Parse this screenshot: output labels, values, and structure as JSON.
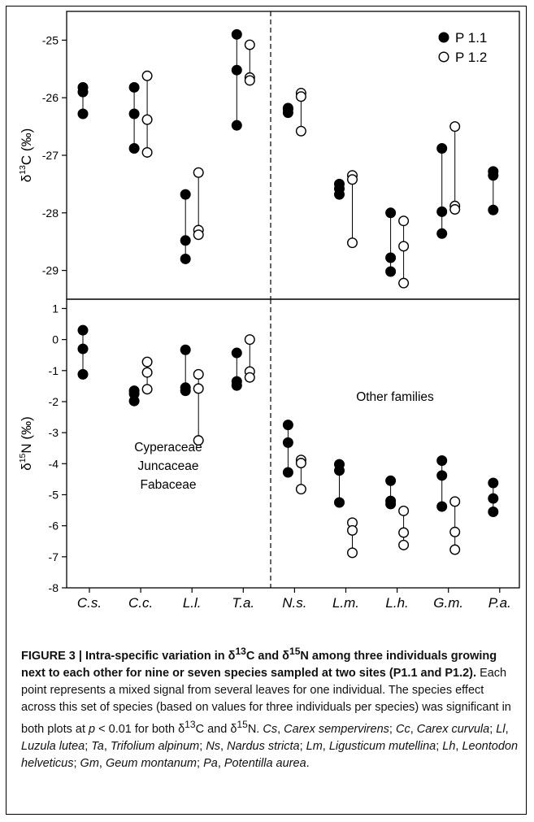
{
  "chart_data": [
    {
      "panel": "top",
      "type": "scatter",
      "ylabel": "δ13C (‰)",
      "ylim": [
        -29.5,
        -24.5
      ],
      "yticks": [
        -25,
        -26,
        -27,
        -28,
        -29
      ],
      "categories": [
        "C.s.",
        "C.c.",
        "L.l.",
        "T.a.",
        "N.s.",
        "L.m.",
        "L.h.",
        "G.m.",
        "P.a."
      ],
      "legend": {
        "placement": "top-right",
        "entries": [
          {
            "marker": "filled",
            "label": "P 1.1"
          },
          {
            "marker": "open",
            "label": "P 1.2"
          }
        ]
      },
      "series": [
        {
          "name": "P 1.1",
          "marker": "filled",
          "values": [
            [
              -25.82,
              -25.9,
              -26.28
            ],
            [
              -25.82,
              -26.28,
              -26.88
            ],
            [
              -27.68,
              -28.48,
              -28.8
            ],
            [
              -24.9,
              -25.52,
              -26.48
            ],
            [
              -26.18,
              -26.26,
              -26.2
            ],
            [
              -27.5,
              -27.58,
              -27.68
            ],
            [
              -28.0,
              -28.78,
              -29.02
            ],
            [
              -26.88,
              -27.98,
              -28.36
            ],
            [
              -27.28,
              -27.35,
              -27.95
            ]
          ]
        },
        {
          "name": "P 1.2",
          "marker": "open",
          "values": [
            null,
            [
              -25.62,
              -26.38,
              -26.95
            ],
            [
              -27.3,
              -28.3,
              -28.38
            ],
            [
              -25.08,
              -25.65,
              -25.7
            ],
            [
              -25.92,
              -25.98,
              -26.58
            ],
            [
              -27.35,
              -27.42,
              -28.52
            ],
            [
              -28.14,
              -28.58,
              -29.22
            ],
            [
              -26.5,
              -27.88,
              -27.94
            ],
            null
          ]
        }
      ]
    },
    {
      "panel": "bottom",
      "type": "scatter",
      "ylabel": "δ15N (‰)",
      "ylim": [
        -8,
        1.3
      ],
      "yticks": [
        1,
        0,
        -1,
        -2,
        -3,
        -4,
        -5,
        -6,
        -7,
        -8
      ],
      "categories": [
        "C.s.",
        "C.c.",
        "L.l.",
        "T.a.",
        "N.s.",
        "L.m.",
        "L.h.",
        "G.m.",
        "P.a."
      ],
      "annotations": {
        "left": [
          "Cyperaceae",
          "Juncaceae",
          "Fabaceae"
        ],
        "right": "Other families"
      },
      "series": [
        {
          "name": "P 1.1",
          "marker": "filled",
          "values": [
            [
              0.3,
              -0.3,
              -1.12
            ],
            [
              -1.65,
              -1.75,
              -1.98
            ],
            [
              -0.33,
              -1.55,
              -1.65
            ],
            [
              -0.43,
              -1.35,
              -1.48
            ],
            [
              -2.75,
              -3.32,
              -4.28
            ],
            [
              -4.02,
              -4.22,
              -5.25
            ],
            [
              -4.55,
              -5.2,
              -5.3
            ],
            [
              -3.9,
              -4.38,
              -5.38
            ],
            [
              -4.62,
              -5.12,
              -5.55
            ]
          ]
        },
        {
          "name": "P 1.2",
          "marker": "open",
          "values": [
            null,
            [
              -0.72,
              -1.06,
              -1.6
            ],
            [
              -1.12,
              -1.58,
              -3.25
            ],
            [
              0.0,
              -1.03,
              -1.22
            ],
            [
              -3.88,
              -3.98,
              -4.82
            ],
            [
              -5.9,
              -6.15,
              -6.87
            ],
            [
              -5.52,
              -6.22,
              -6.62
            ],
            [
              -5.22,
              -6.2,
              -6.77
            ],
            null
          ]
        }
      ]
    }
  ],
  "caption": {
    "title_prefix": "FIGURE 3 | Intra-specific variation in δ",
    "title_c_super": "13",
    "title_c_text": "C and δ",
    "title_n_super": "15",
    "title_n_text": "N among three individuals growing next to each other for nine or seven species sampled at two sites (P1.1 and P1.2).",
    "body_1": " Each point represents a mixed signal from several leaves for one individual. The species effect across this set of species (based on values for three individuals per species) was significant in both plots at ",
    "p_symbol": "p",
    "body_2": " < 0.01 for both δ",
    "body_c_super": "13",
    "body_3": "C and δ",
    "body_n_super": "15",
    "body_4": "N. ",
    "species": [
      {
        "abbr": "Cs",
        "name": "Carex sempervirens"
      },
      {
        "abbr": "Cc",
        "name": "Carex curvula"
      },
      {
        "abbr": "Ll",
        "name": "Luzula lutea"
      },
      {
        "abbr": "Ta",
        "name": "Trifolium alpinum"
      },
      {
        "abbr": "Ns",
        "name": "Nardus stricta"
      },
      {
        "abbr": "Lm",
        "name": "Ligusticum mutellina"
      },
      {
        "abbr": "Lh",
        "name": "Leontodon helveticus"
      },
      {
        "abbr": "Gm",
        "name": "Geum montanum"
      },
      {
        "abbr": "Pa",
        "name": "Potentilla aurea"
      }
    ]
  }
}
